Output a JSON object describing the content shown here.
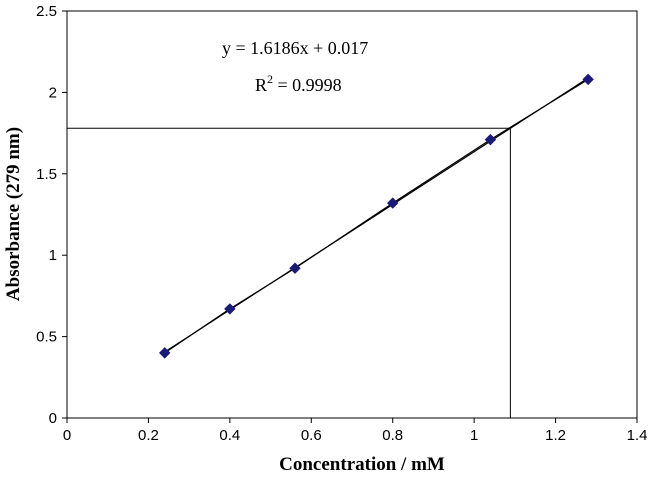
{
  "chart_data": {
    "type": "scatter",
    "title": "",
    "xlabel": "Concentration / mM",
    "ylabel": "Absorbance (279 nm)",
    "xlim": [
      0,
      1.4
    ],
    "ylim": [
      0,
      2.5
    ],
    "x_ticks": [
      "0",
      "0.2",
      "0.4",
      "0.6",
      "0.8",
      "1",
      "1.2",
      "1.4"
    ],
    "y_ticks": [
      "0",
      "0.5",
      "1",
      "1.5",
      "2",
      "2.5"
    ],
    "grid": false,
    "legend": "none",
    "marker_color": "#1a1a7a",
    "line_color": "#000000",
    "series": [
      {
        "marker": "diamond",
        "points": [
          {
            "x": 0.24,
            "y": 0.4
          },
          {
            "x": 0.4,
            "y": 0.67
          },
          {
            "x": 0.56,
            "y": 0.92
          },
          {
            "x": 0.8,
            "y": 1.32
          },
          {
            "x": 1.04,
            "y": 1.71
          },
          {
            "x": 1.28,
            "y": 2.08
          }
        ]
      }
    ],
    "trendline": {
      "type": "linear",
      "slope": 1.6186,
      "intercept": 0.017,
      "x_range": [
        0.24,
        1.28
      ]
    },
    "reference_lines": {
      "y": 1.78,
      "x": 1.089
    },
    "annotations": {
      "equation": "y = 1.6186x + 0.017",
      "r2_prefix": "R",
      "r2_sup": "2",
      "r2_value": " = 0.9998"
    }
  }
}
